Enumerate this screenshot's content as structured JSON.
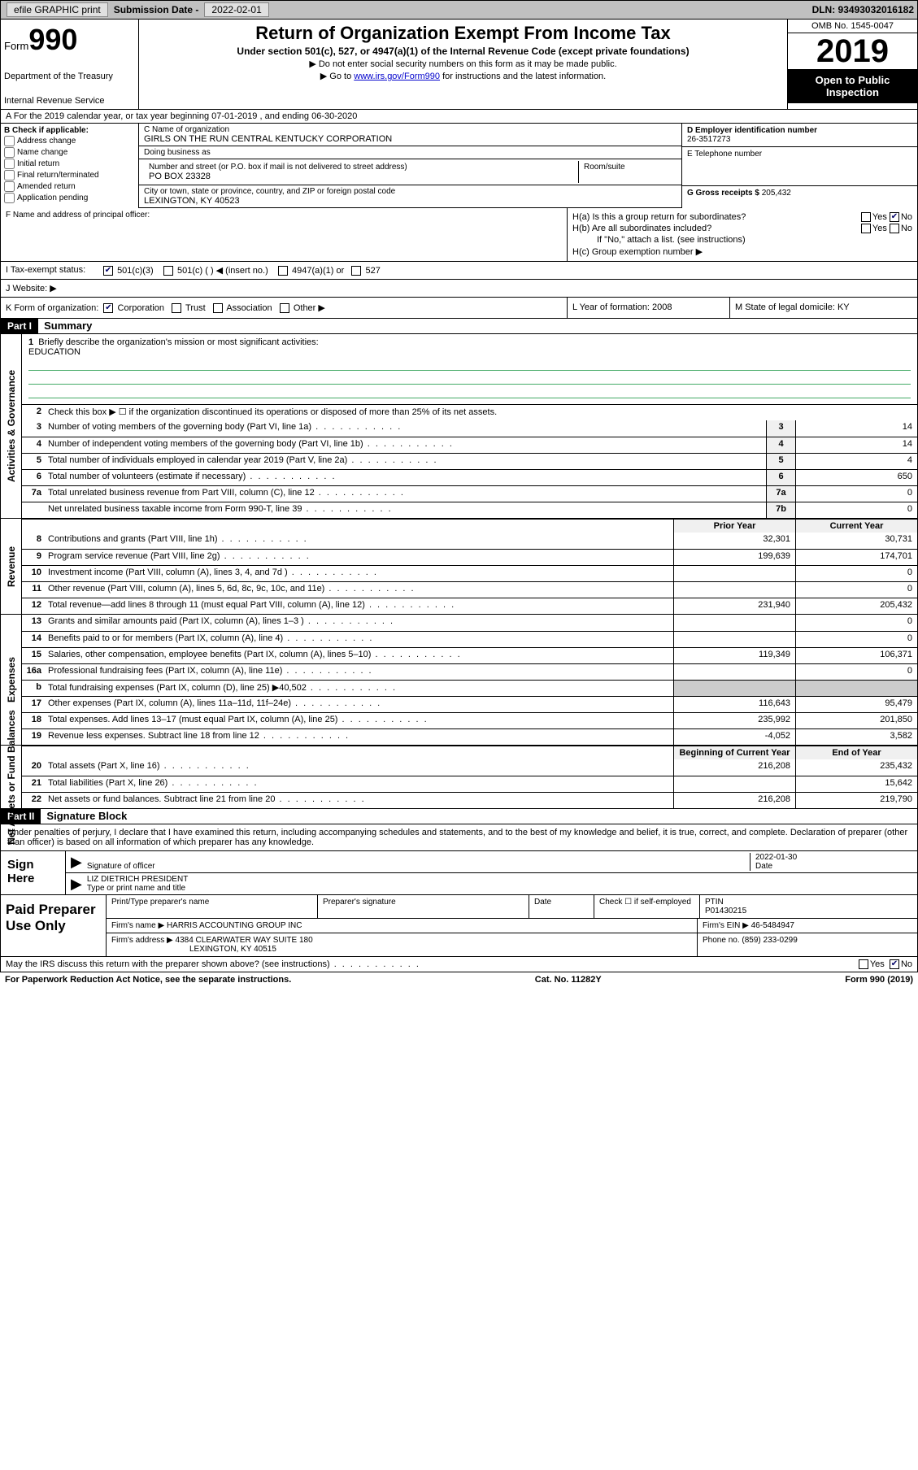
{
  "topbar": {
    "efile": "efile GRAPHIC print",
    "sub_lbl": "Submission Date -",
    "sub_val": "2022-02-01",
    "dln": "DLN: 93493032016182"
  },
  "header": {
    "form_word": "Form",
    "form_no": "990",
    "dept1": "Department of the Treasury",
    "dept2": "Internal Revenue Service",
    "title": "Return of Organization Exempt From Income Tax",
    "sub": "Under section 501(c), 527, or 4947(a)(1) of the Internal Revenue Code (except private foundations)",
    "note1": "Do not enter social security numbers on this form as it may be made public.",
    "note2_a": "Go to ",
    "note2_link": "www.irs.gov/Form990",
    "note2_b": " for instructions and the latest information.",
    "omb": "OMB No. 1545-0047",
    "year": "2019",
    "inspect": "Open to Public Inspection"
  },
  "row_a": "A For the 2019 calendar year, or tax year beginning 07-01-2019   , and ending 06-30-2020",
  "col_b": {
    "hdr": "B Check if applicable:",
    "opts": [
      "Address change",
      "Name change",
      "Initial return",
      "Final return/terminated",
      "Amended return",
      "Application pending"
    ]
  },
  "col_c": {
    "name_lbl": "C Name of organization",
    "name": "GIRLS ON THE RUN CENTRAL KENTUCKY CORPORATION",
    "dba_lbl": "Doing business as",
    "dba": "",
    "street_lbl": "Number and street (or P.O. box if mail is not delivered to street address)",
    "room_lbl": "Room/suite",
    "street": "PO BOX 23328",
    "city_lbl": "City or town, state or province, country, and ZIP or foreign postal code",
    "city": "LEXINGTON, KY  40523",
    "officer_lbl": "F Name and address of principal officer:",
    "officer": ""
  },
  "col_d": {
    "ein_lbl": "D Employer identification number",
    "ein": "26-3517273",
    "tel_lbl": "E Telephone number",
    "tel": "",
    "gross_lbl": "G Gross receipts $",
    "gross": "205,432"
  },
  "hq": {
    "ha": "H(a)  Is this a group return for subordinates?",
    "hb": "H(b)  Are all subordinates included?",
    "hb_note": "If \"No,\" attach a list. (see instructions)",
    "hc": "H(c)  Group exemption number ▶",
    "yes": "Yes",
    "no": "No"
  },
  "status": {
    "i_lbl": "I   Tax-exempt status:",
    "opts": [
      "501(c)(3)",
      "501(c) (  ) ◀ (insert no.)",
      "4947(a)(1) or",
      "527"
    ],
    "j_lbl": "J   Website: ▶",
    "j_val": ""
  },
  "k_row": {
    "k": "K Form of organization:",
    "opts": [
      "Corporation",
      "Trust",
      "Association",
      "Other ▶"
    ],
    "l": "L Year of formation: 2008",
    "m": "M State of legal domicile: KY"
  },
  "part1": {
    "tag": "Part I",
    "title": "Summary"
  },
  "summary": {
    "q1": "Briefly describe the organization's mission or most significant activities:",
    "mission": "EDUCATION",
    "q2": "Check this box ▶ ☐  if the organization discontinued its operations or disposed of more than 25% of its net assets.",
    "lines_gov": [
      {
        "n": "3",
        "d": "Number of voting members of the governing body (Part VI, line 1a)",
        "box": "3",
        "v": "14"
      },
      {
        "n": "4",
        "d": "Number of independent voting members of the governing body (Part VI, line 1b)",
        "box": "4",
        "v": "14"
      },
      {
        "n": "5",
        "d": "Total number of individuals employed in calendar year 2019 (Part V, line 2a)",
        "box": "5",
        "v": "4"
      },
      {
        "n": "6",
        "d": "Total number of volunteers (estimate if necessary)",
        "box": "6",
        "v": "650"
      },
      {
        "n": "7a",
        "d": "Total unrelated business revenue from Part VIII, column (C), line 12",
        "box": "7a",
        "v": "0"
      },
      {
        "n": "",
        "d": "Net unrelated business taxable income from Form 990-T, line 39",
        "box": "7b",
        "v": "0"
      }
    ],
    "prior_hdr": "Prior Year",
    "curr_hdr": "Current Year",
    "rev": [
      {
        "n": "8",
        "d": "Contributions and grants (Part VIII, line 1h)",
        "p": "32,301",
        "c": "30,731"
      },
      {
        "n": "9",
        "d": "Program service revenue (Part VIII, line 2g)",
        "p": "199,639",
        "c": "174,701"
      },
      {
        "n": "10",
        "d": "Investment income (Part VIII, column (A), lines 3, 4, and 7d )",
        "p": "",
        "c": "0"
      },
      {
        "n": "11",
        "d": "Other revenue (Part VIII, column (A), lines 5, 6d, 8c, 9c, 10c, and 11e)",
        "p": "",
        "c": "0"
      },
      {
        "n": "12",
        "d": "Total revenue—add lines 8 through 11 (must equal Part VIII, column (A), line 12)",
        "p": "231,940",
        "c": "205,432"
      }
    ],
    "exp": [
      {
        "n": "13",
        "d": "Grants and similar amounts paid (Part IX, column (A), lines 1–3 )",
        "p": "",
        "c": "0"
      },
      {
        "n": "14",
        "d": "Benefits paid to or for members (Part IX, column (A), line 4)",
        "p": "",
        "c": "0"
      },
      {
        "n": "15",
        "d": "Salaries, other compensation, employee benefits (Part IX, column (A), lines 5–10)",
        "p": "119,349",
        "c": "106,371"
      },
      {
        "n": "16a",
        "d": "Professional fundraising fees (Part IX, column (A), line 11e)",
        "p": "",
        "c": "0"
      },
      {
        "n": "b",
        "d": "Total fundraising expenses (Part IX, column (D), line 25) ▶40,502",
        "p": "grey",
        "c": "grey"
      },
      {
        "n": "17",
        "d": "Other expenses (Part IX, column (A), lines 11a–11d, 11f–24e)",
        "p": "116,643",
        "c": "95,479"
      },
      {
        "n": "18",
        "d": "Total expenses. Add lines 13–17 (must equal Part IX, column (A), line 25)",
        "p": "235,992",
        "c": "201,850"
      },
      {
        "n": "19",
        "d": "Revenue less expenses. Subtract line 18 from line 12",
        "p": "-4,052",
        "c": "3,582"
      }
    ],
    "beg_hdr": "Beginning of Current Year",
    "end_hdr": "End of Year",
    "net": [
      {
        "n": "20",
        "d": "Total assets (Part X, line 16)",
        "p": "216,208",
        "c": "235,432"
      },
      {
        "n": "21",
        "d": "Total liabilities (Part X, line 26)",
        "p": "",
        "c": "15,642"
      },
      {
        "n": "22",
        "d": "Net assets or fund balances. Subtract line 21 from line 20",
        "p": "216,208",
        "c": "219,790"
      }
    ]
  },
  "sections": {
    "gov": "Activities & Governance",
    "rev": "Revenue",
    "exp": "Expenses",
    "net": "Net Assets or Fund Balances"
  },
  "part2": {
    "tag": "Part II",
    "title": "Signature Block"
  },
  "sig": {
    "text": "Under penalties of perjury, I declare that I have examined this return, including accompanying schedules and statements, and to the best of my knowledge and belief, it is true, correct, and complete. Declaration of preparer (other than officer) is based on all information of which preparer has any knowledge.",
    "sign_here": "Sign Here",
    "sig_lbl": "Signature of officer",
    "date_lbl": "Date",
    "date_val": "2022-01-30",
    "name": "LIZ DIETRICH  PRESIDENT",
    "name_lbl": "Type or print name and title"
  },
  "prep": {
    "hdr": "Paid Preparer Use Only",
    "c1": "Print/Type preparer's name",
    "c2": "Preparer's signature",
    "c3": "Date",
    "c4a": "Check ☐ if self-employed",
    "c5": "PTIN",
    "ptin": "P01430215",
    "firm_lbl": "Firm's name    ▶",
    "firm": "HARRIS ACCOUNTING GROUP INC",
    "ein_lbl": "Firm's EIN ▶",
    "ein": "46-5484947",
    "addr_lbl": "Firm's address ▶",
    "addr1": "4384 CLEARWATER WAY SUITE 180",
    "addr2": "LEXINGTON, KY  40515",
    "phone_lbl": "Phone no.",
    "phone": "(859) 233-0299"
  },
  "footer": {
    "discuss": "May the IRS discuss this return with the preparer shown above? (see instructions)",
    "yes": "Yes",
    "no": "No",
    "pra": "For Paperwork Reduction Act Notice, see the separate instructions.",
    "cat": "Cat. No. 11282Y",
    "form": "Form 990 (2019)"
  }
}
